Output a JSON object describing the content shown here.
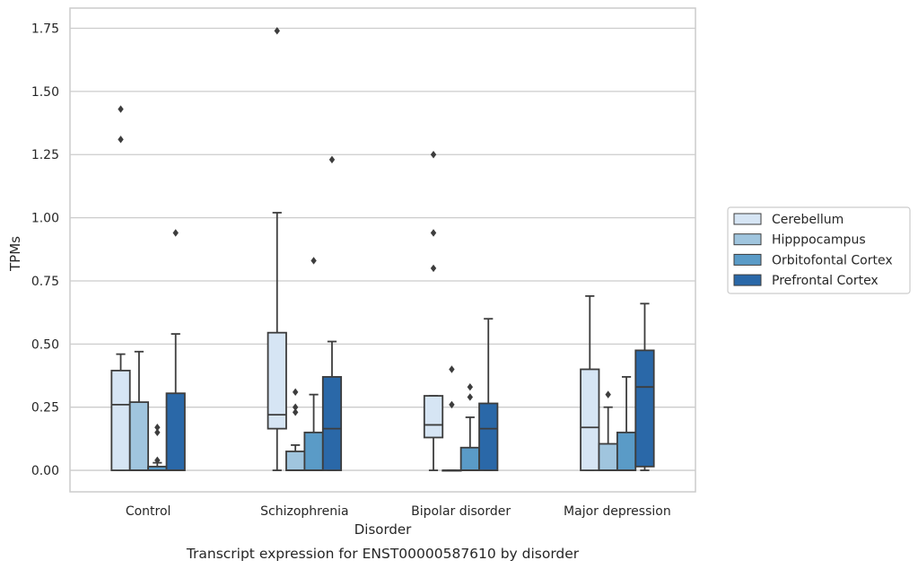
{
  "chart_data": {
    "type": "box",
    "caption": "Transcript expression for ENST00000587610 by disorder",
    "xlabel": "Disorder",
    "ylabel": "TPMs",
    "ylim": [
      -0.085,
      1.83
    ],
    "yticks": [
      0.0,
      0.25,
      0.5,
      0.75,
      1.0,
      1.25,
      1.5,
      1.75
    ],
    "ytick_labels": [
      "0.00",
      "0.25",
      "0.50",
      "0.75",
      "1.00",
      "1.25",
      "1.50",
      "1.75"
    ],
    "grid": "horizontal",
    "legend_position": "right",
    "categories": [
      "Control",
      "Schizophrenia",
      "Bipolar disorder",
      "Major depression"
    ],
    "series": [
      {
        "name": "Cerebellum",
        "color": "#d6e5f4",
        "boxes": [
          {
            "whislo": 0.0,
            "q1": 0.0,
            "med": 0.26,
            "q3": 0.395,
            "whishi": 0.46,
            "fliers": [
              1.31,
              1.43
            ]
          },
          {
            "whislo": 0.0,
            "q1": 0.165,
            "med": 0.22,
            "q3": 0.545,
            "whishi": 1.02,
            "fliers": [
              1.74
            ]
          },
          {
            "whislo": 0.0,
            "q1": 0.13,
            "med": 0.18,
            "q3": 0.295,
            "whishi": 0.295,
            "fliers": [
              0.8,
              0.94,
              1.25
            ]
          },
          {
            "whislo": 0.0,
            "q1": 0.0,
            "med": 0.17,
            "q3": 0.4,
            "whishi": 0.69,
            "fliers": []
          }
        ]
      },
      {
        "name": "Hipppocampus",
        "color": "#a0c5de",
        "boxes": [
          {
            "whislo": 0.0,
            "q1": 0.0,
            "med": 0.0,
            "q3": 0.27,
            "whishi": 0.47,
            "fliers": []
          },
          {
            "whislo": 0.0,
            "q1": 0.0,
            "med": 0.0,
            "q3": 0.075,
            "whishi": 0.1,
            "fliers": [
              0.23,
              0.25,
              0.31
            ]
          },
          {
            "whislo": 0.0,
            "q1": 0.0,
            "med": 0.0,
            "q3": 0.0,
            "whishi": 0.0,
            "fliers": [
              0.26,
              0.4
            ]
          },
          {
            "whislo": 0.0,
            "q1": 0.0,
            "med": 0.0,
            "q3": 0.105,
            "whishi": 0.25,
            "fliers": [
              0.3
            ]
          }
        ]
      },
      {
        "name": "Orbitofontal Cortex",
        "color": "#5a9bc7",
        "boxes": [
          {
            "whislo": 0.0,
            "q1": 0.0,
            "med": 0.0,
            "q3": 0.015,
            "whishi": 0.03,
            "fliers": [
              0.04,
              0.15,
              0.17
            ]
          },
          {
            "whislo": 0.0,
            "q1": 0.0,
            "med": 0.0,
            "q3": 0.15,
            "whishi": 0.3,
            "fliers": [
              0.83
            ]
          },
          {
            "whislo": 0.0,
            "q1": 0.0,
            "med": 0.0,
            "q3": 0.09,
            "whishi": 0.21,
            "fliers": [
              0.29,
              0.33
            ]
          },
          {
            "whislo": 0.0,
            "q1": 0.0,
            "med": 0.0,
            "q3": 0.15,
            "whishi": 0.37,
            "fliers": []
          }
        ]
      },
      {
        "name": "Prefrontal Cortex",
        "color": "#2a68a8",
        "boxes": [
          {
            "whislo": 0.0,
            "q1": 0.0,
            "med": 0.0,
            "q3": 0.305,
            "whishi": 0.54,
            "fliers": [
              0.94
            ]
          },
          {
            "whislo": 0.0,
            "q1": 0.0,
            "med": 0.165,
            "q3": 0.37,
            "whishi": 0.51,
            "fliers": [
              1.23
            ]
          },
          {
            "whislo": 0.0,
            "q1": 0.0,
            "med": 0.165,
            "q3": 0.265,
            "whishi": 0.6,
            "fliers": []
          },
          {
            "whislo": 0.0,
            "q1": 0.015,
            "med": 0.33,
            "q3": 0.475,
            "whishi": 0.66,
            "fliers": []
          }
        ]
      }
    ]
  }
}
